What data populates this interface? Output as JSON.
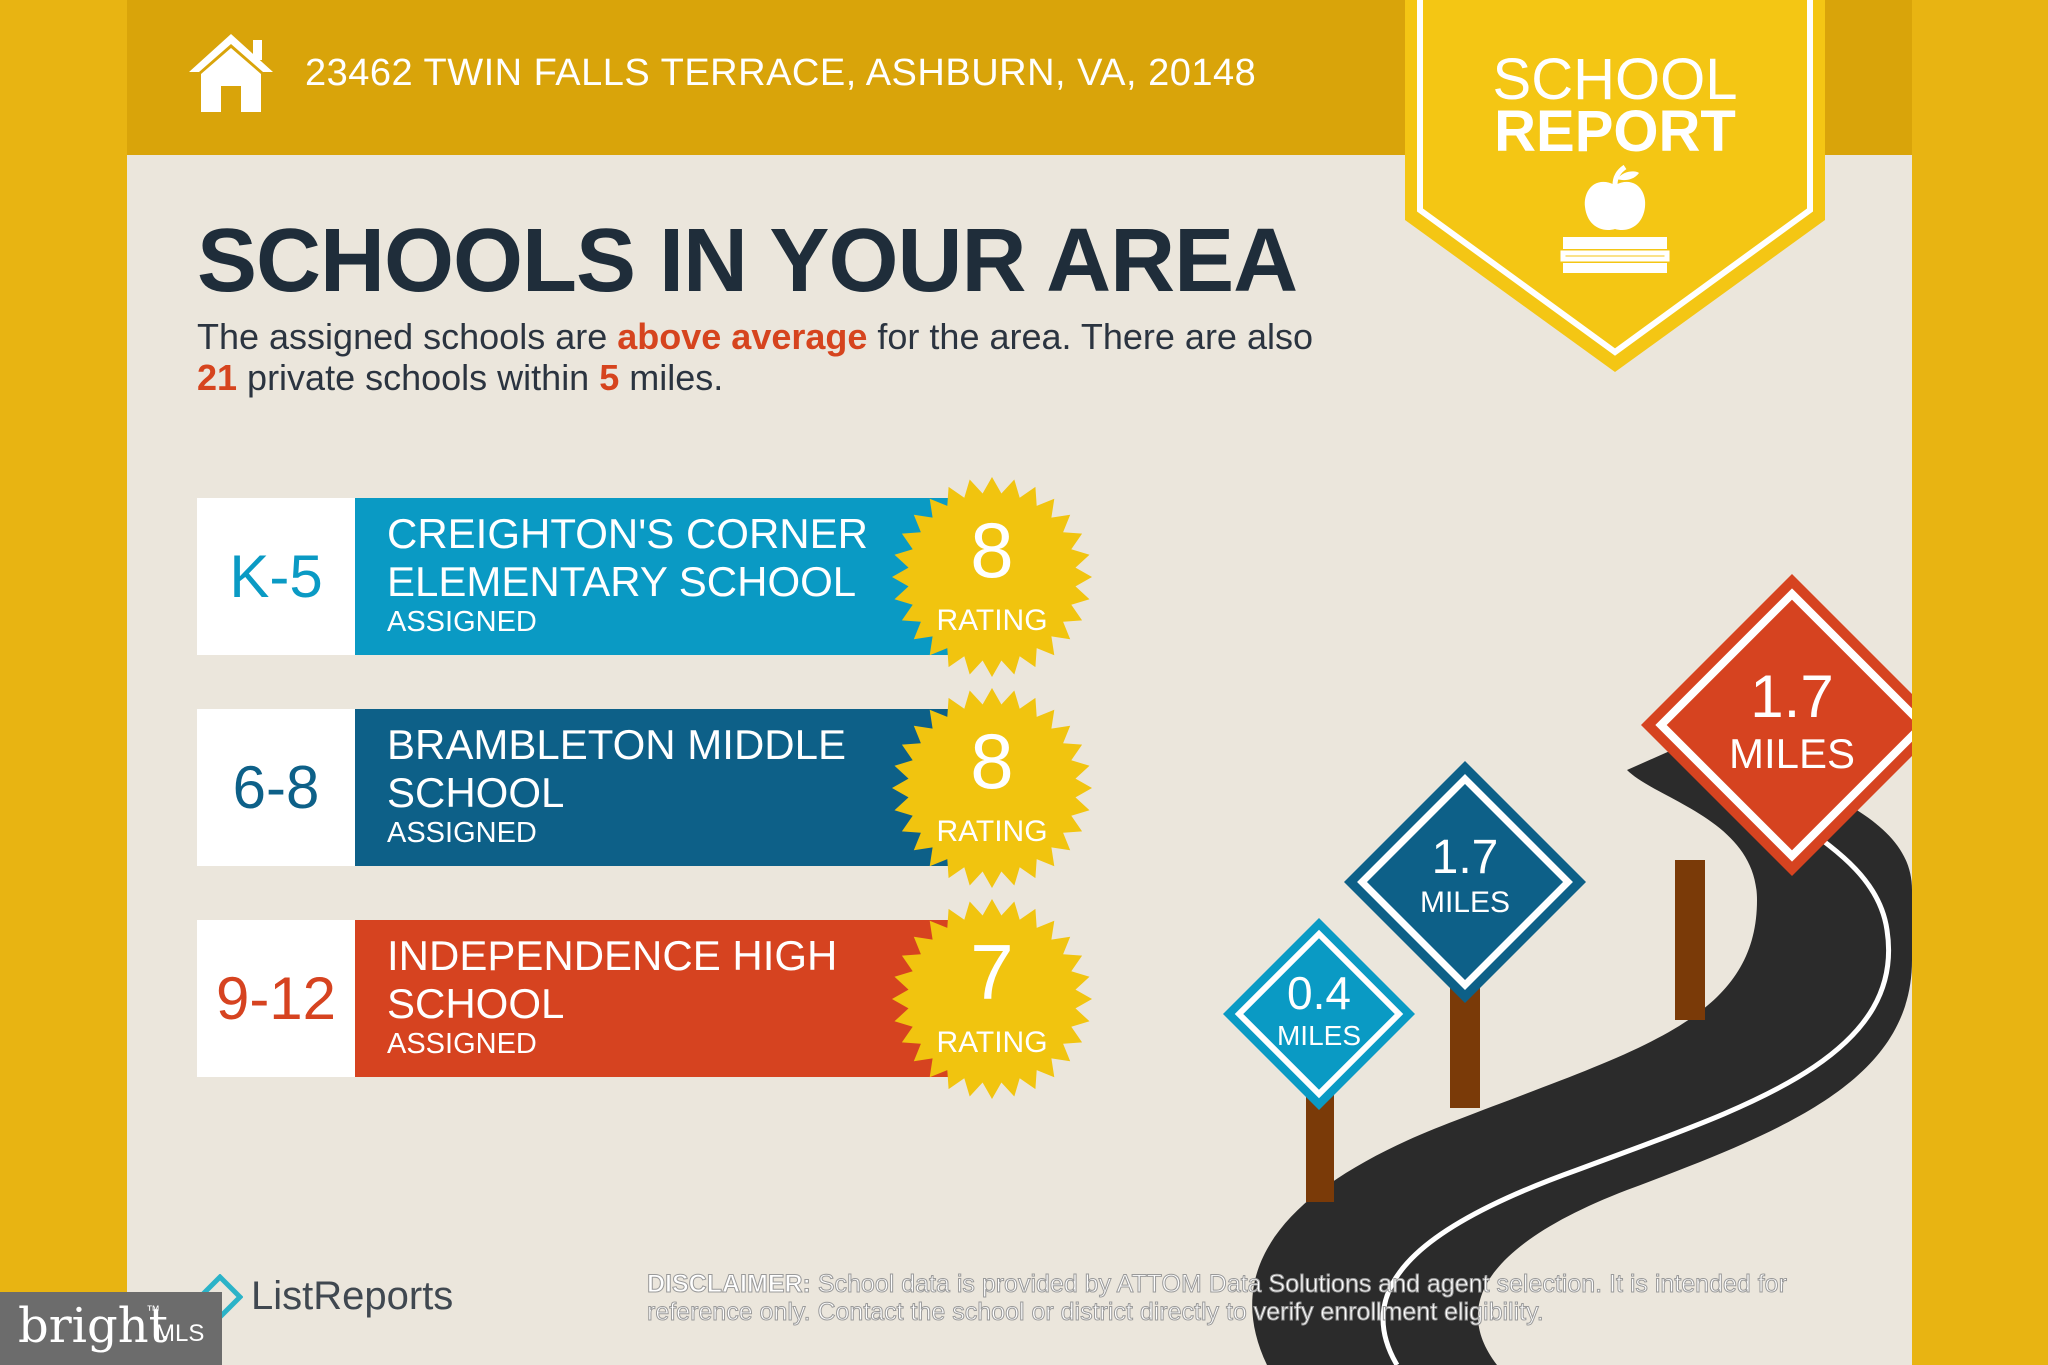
{
  "header": {
    "address": "23462 TWIN FALLS TERRACE, ASHBURN, VA, 20148",
    "icon": "home-icon"
  },
  "badge": {
    "line1": "SCHOOL",
    "line2": "REPORT",
    "icon": "apple-books-icon"
  },
  "heading": "SCHOOLS IN YOUR AREA",
  "summary": {
    "p1": "The assigned schools are ",
    "h1": "above average",
    "p2": " for the area. There are also ",
    "h2": "21",
    "p3": " private schools within ",
    "h3": "5",
    "p4": " miles."
  },
  "schools": [
    {
      "grade": "K-5",
      "name": "CREIGHTON'S CORNER ELEMENTARY SCHOOL",
      "status": "ASSIGNED",
      "rating": "8",
      "rating_label": "RATING",
      "color": "#0a9ac4",
      "grade_color": "#0a9ac4"
    },
    {
      "grade": "6-8",
      "name": "BRAMBLETON MIDDLE SCHOOL",
      "status": "ASSIGNED",
      "rating": "8",
      "rating_label": "RATING",
      "color": "#0d6088",
      "grade_color": "#0d6088"
    },
    {
      "grade": "9-12",
      "name": "INDEPENDENCE HIGH SCHOOL",
      "status": "ASSIGNED",
      "rating": "7",
      "rating_label": "RATING",
      "color": "#d64320",
      "grade_color": "#d64320"
    }
  ],
  "signs": [
    {
      "value": "0.4",
      "unit": "MILES",
      "color": "#0a9ac4"
    },
    {
      "value": "1.7",
      "unit": "MILES",
      "color": "#0d6088"
    },
    {
      "value": "1.7",
      "unit": "MILES",
      "color": "#d64320"
    }
  ],
  "footer": {
    "brand": "ListReports",
    "disclaimer_label": "DISCLAIMER:",
    "disclaimer_text": " School data is provided by ATTOM Data Solutions and agent selection. It is intended for reference only. Contact the school or district directly to verify enrollment eligibility."
  },
  "watermark": {
    "main": "bright",
    "tm": "™",
    "sub": "MLS"
  },
  "colors": {
    "gold": "#e8b412",
    "topbar": "#d9a40a",
    "seal": "#f1c40f",
    "accent": "#d6441e",
    "ink": "#1f2d3a"
  }
}
